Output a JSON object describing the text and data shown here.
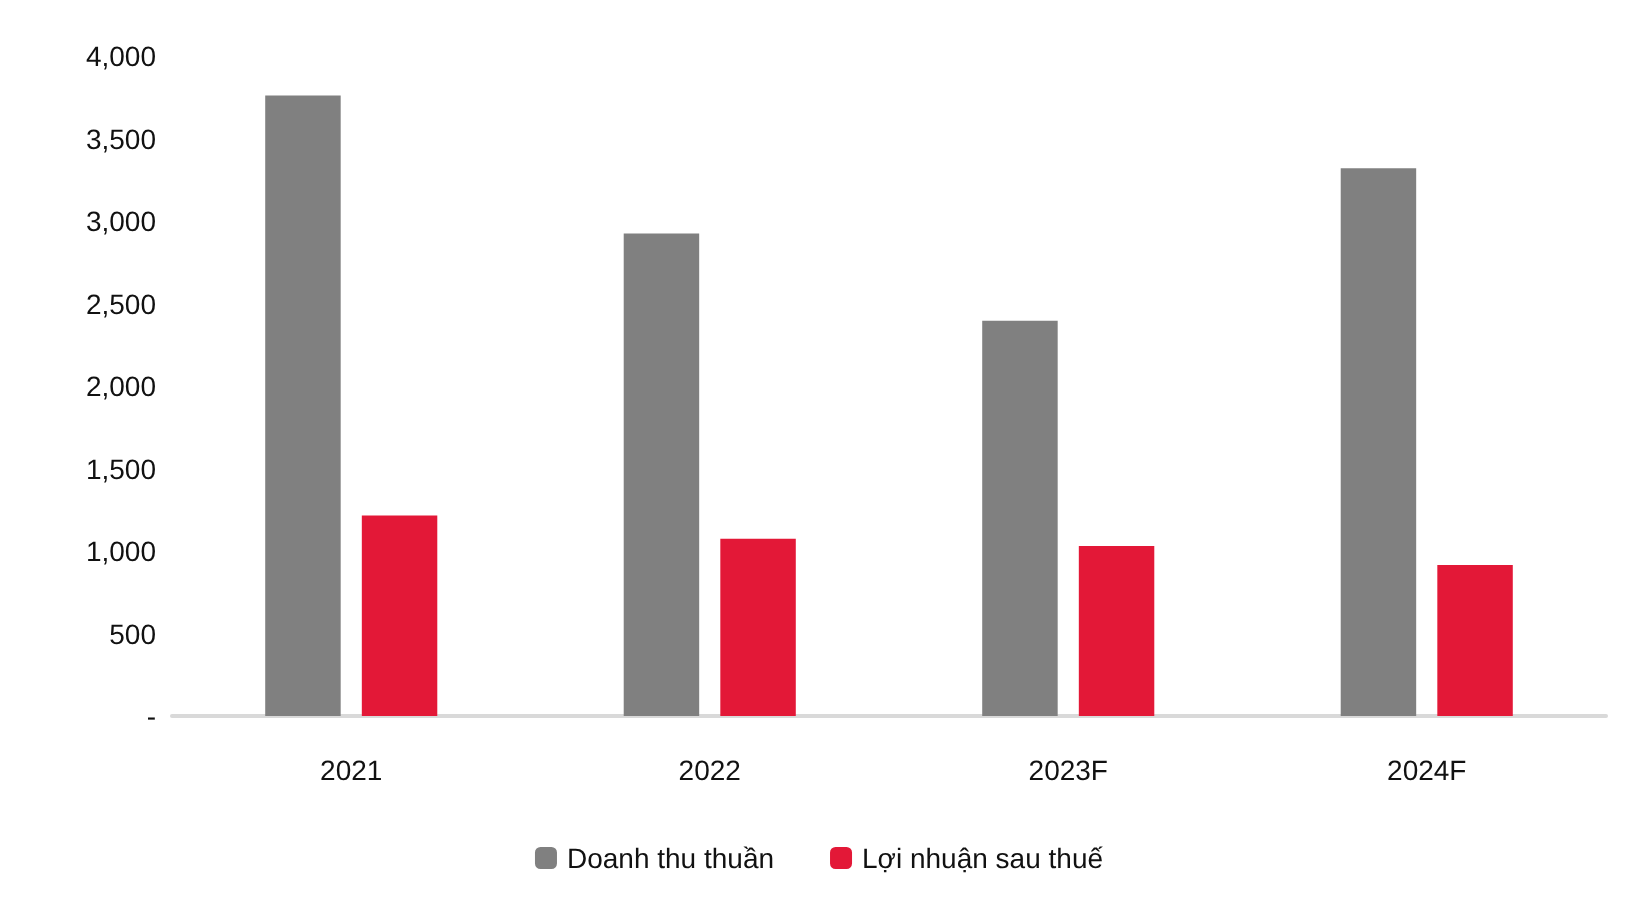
{
  "chart_data": {
    "type": "bar",
    "categories": [
      "2021",
      "2022",
      "2023F",
      "2024F"
    ],
    "series": [
      {
        "name": "Doanh thu thuần",
        "color": "#808080",
        "values": [
          3760,
          2925,
          2395,
          3320
        ]
      },
      {
        "name": "Lợi nhuận sau thuế",
        "color": "#e31837",
        "values": [
          1215,
          1075,
          1030,
          915
        ]
      }
    ],
    "ylim": [
      0,
      4000
    ],
    "yticks": [
      {
        "value": 0,
        "label": "-"
      },
      {
        "value": 500,
        "label": "500"
      },
      {
        "value": 1000,
        "label": "1,000"
      },
      {
        "value": 1500,
        "label": "1,500"
      },
      {
        "value": 2000,
        "label": "2,000"
      },
      {
        "value": 2500,
        "label": "2,500"
      },
      {
        "value": 3000,
        "label": "3,000"
      },
      {
        "value": 3500,
        "label": "3,500"
      },
      {
        "value": 4000,
        "label": "4,000"
      }
    ],
    "grid": false,
    "legend": "bottom"
  }
}
